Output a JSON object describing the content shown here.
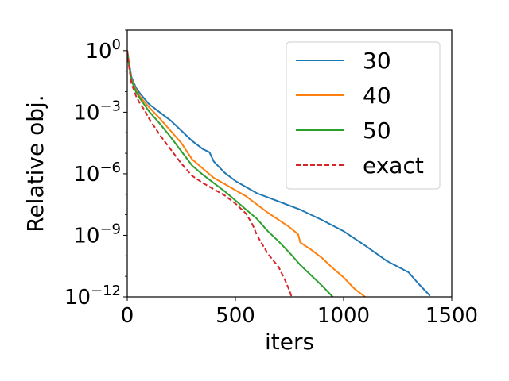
{
  "chart_data": {
    "type": "line",
    "title": "",
    "xlabel": "iters",
    "ylabel": "Relative obj.",
    "xlim": [
      0,
      1500
    ],
    "ylim_log10": [
      -12,
      1
    ],
    "yscale": "log",
    "grid": false,
    "legend_placement": "top-right",
    "x_ticks": [
      {
        "value": 0,
        "label": "0"
      },
      {
        "value": 500,
        "label": "500"
      },
      {
        "value": 1000,
        "label": "1000"
      },
      {
        "value": 1500,
        "label": "1500"
      }
    ],
    "y_ticks": [
      {
        "exp": 0,
        "base": "10",
        "sup": "0"
      },
      {
        "exp": -3,
        "base": "10",
        "sup": "−3"
      },
      {
        "exp": -6,
        "base": "10",
        "sup": "−6"
      },
      {
        "exp": -9,
        "base": "10",
        "sup": "−9"
      },
      {
        "exp": -12,
        "base": "10",
        "sup": "−12"
      }
    ],
    "series": [
      {
        "name": "30",
        "color": "#1f77b4",
        "dash": "solid",
        "x": [
          0,
          10,
          20,
          40,
          60,
          80,
          100,
          150,
          200,
          250,
          300,
          350,
          380,
          400,
          450,
          500,
          550,
          600,
          700,
          800,
          900,
          1000,
          1050,
          1100,
          1200,
          1300,
          1350,
          1400
        ],
        "log10_y": [
          0.0,
          -0.7,
          -1.3,
          -1.8,
          -2.1,
          -2.35,
          -2.6,
          -3.0,
          -3.4,
          -3.9,
          -4.4,
          -4.8,
          -4.95,
          -5.4,
          -5.95,
          -6.35,
          -6.65,
          -6.95,
          -7.35,
          -7.75,
          -8.25,
          -8.8,
          -9.15,
          -9.5,
          -10.25,
          -10.8,
          -11.4,
          -11.95
        ]
      },
      {
        "name": "40",
        "color": "#ff7f0e",
        "dash": "solid",
        "x": [
          0,
          10,
          20,
          40,
          60,
          80,
          100,
          150,
          200,
          250,
          300,
          350,
          400,
          450,
          500,
          550,
          600,
          650,
          700,
          750,
          790,
          800,
          850,
          900,
          950,
          1000,
          1050,
          1100
        ],
        "log10_y": [
          0.0,
          -0.8,
          -1.4,
          -1.9,
          -2.25,
          -2.5,
          -2.75,
          -3.3,
          -3.9,
          -4.5,
          -5.3,
          -5.75,
          -6.2,
          -6.5,
          -6.8,
          -7.1,
          -7.5,
          -7.9,
          -8.25,
          -8.6,
          -8.95,
          -9.35,
          -9.7,
          -10.1,
          -10.6,
          -11.05,
          -11.6,
          -12.0
        ]
      },
      {
        "name": "50",
        "color": "#2ca02c",
        "dash": "solid",
        "x": [
          0,
          10,
          20,
          40,
          60,
          80,
          100,
          150,
          200,
          250,
          300,
          350,
          400,
          450,
          500,
          550,
          600,
          650,
          700,
          750,
          800,
          850,
          900,
          950
        ],
        "log10_y": [
          0.0,
          -0.8,
          -1.45,
          -2.0,
          -2.35,
          -2.65,
          -2.95,
          -3.55,
          -4.2,
          -4.9,
          -5.6,
          -6.05,
          -6.45,
          -6.85,
          -7.3,
          -7.75,
          -8.2,
          -8.8,
          -9.3,
          -9.85,
          -10.45,
          -10.95,
          -11.45,
          -12.0
        ]
      },
      {
        "name": "exact",
        "color": "#d62728",
        "dash": "dashed",
        "x": [
          0,
          10,
          20,
          40,
          60,
          80,
          100,
          150,
          200,
          250,
          300,
          350,
          400,
          450,
          500,
          550,
          580,
          600,
          650,
          700,
          730,
          750,
          760
        ],
        "log10_y": [
          0.0,
          -0.9,
          -1.6,
          -2.2,
          -2.6,
          -2.9,
          -3.3,
          -4.1,
          -4.8,
          -5.5,
          -6.1,
          -6.45,
          -6.75,
          -7.05,
          -7.45,
          -7.95,
          -8.5,
          -9.0,
          -9.9,
          -10.55,
          -11.2,
          -11.7,
          -12.0
        ]
      }
    ]
  }
}
